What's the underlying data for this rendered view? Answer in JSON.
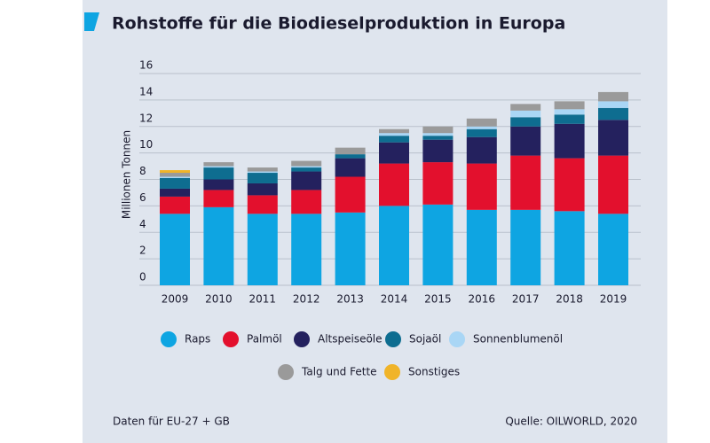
{
  "chart_data": {
    "type": "stacked_bar",
    "title": "Rohstoffe für die Biodieselproduktion in Europa",
    "y_label": "Millionen Tonnen",
    "categories": [
      "2009",
      "2010",
      "2011",
      "2012",
      "2013",
      "2014",
      "2015",
      "2016",
      "2017",
      "2018",
      "2019"
    ],
    "series": [
      {
        "name": "Raps",
        "color": "#0ea5e2",
        "values": [
          5.4,
          5.9,
          5.4,
          5.4,
          5.5,
          6.0,
          6.1,
          5.7,
          5.7,
          5.6,
          5.4
        ]
      },
      {
        "name": "Palmöl",
        "color": "#e3102d",
        "values": [
          1.3,
          1.3,
          1.4,
          1.8,
          2.7,
          3.2,
          3.2,
          3.5,
          4.1,
          4.0,
          4.4
        ]
      },
      {
        "name": "Altspeiseöle",
        "color": "#24215e",
        "values": [
          0.6,
          0.8,
          0.9,
          1.4,
          1.4,
          1.6,
          1.7,
          2.0,
          2.2,
          2.6,
          2.7
        ]
      },
      {
        "name": "Sojaöl",
        "color": "#0e6d90",
        "values": [
          0.8,
          0.9,
          0.8,
          0.3,
          0.3,
          0.5,
          0.3,
          0.6,
          0.7,
          0.7,
          0.9
        ]
      },
      {
        "name": "Sonnenblumenöl",
        "color": "#a9d6f5",
        "values": [
          0.1,
          0.1,
          0.1,
          0.1,
          0,
          0.2,
          0.2,
          0.2,
          0.5,
          0.4,
          0.5
        ]
      },
      {
        "name": "Talg und Fette",
        "color": "#9a9a9a",
        "values": [
          0.3,
          0.3,
          0.3,
          0.4,
          0.5,
          0.3,
          0.5,
          0.6,
          0.5,
          0.6,
          0.7
        ]
      },
      {
        "name": "Sonstiges",
        "color": "#f0b429",
        "values": [
          0.2,
          0,
          0,
          0,
          0,
          0,
          0,
          0,
          0,
          0,
          0
        ]
      }
    ],
    "ylim": [
      0,
      16
    ],
    "yticks": [
      0,
      2,
      4,
      6,
      8,
      10,
      12,
      14,
      16
    ],
    "grid": true,
    "footnote": "Daten für EU-27 + GB",
    "source": "Quelle: OILWORLD, 2020"
  }
}
